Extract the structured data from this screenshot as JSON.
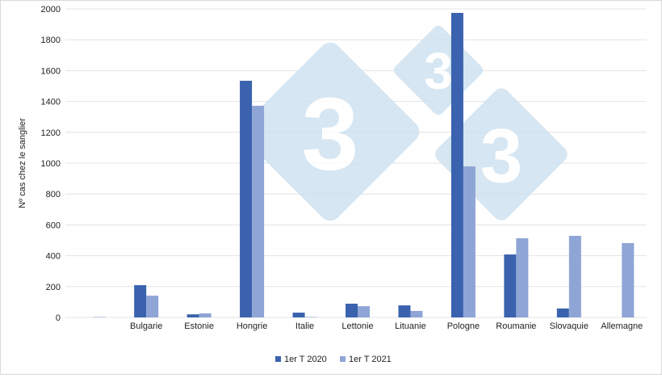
{
  "watermark": {
    "text": "3",
    "color": "#cfe2f0"
  },
  "chart_data": {
    "type": "bar",
    "title": "",
    "xlabel": "",
    "ylabel": "Nº cas chez le sanglier",
    "ylim": [
      0,
      2000
    ],
    "yticks": [
      0,
      200,
      400,
      600,
      800,
      1000,
      1200,
      1400,
      1600,
      1800,
      2000
    ],
    "grid": true,
    "legend_position": "bottom",
    "categories": [
      "",
      "Bulgarie",
      "Estonie",
      "Hongrie",
      "Italie",
      "Lettonie",
      "Lituanie",
      "Pologne",
      "Roumanie",
      "Slovaquie",
      "Allemagne"
    ],
    "series": [
      {
        "name": "1er T 2020",
        "color": "#3a62ae",
        "values": [
          0,
          209,
          20,
          1534,
          31,
          89,
          78,
          1974,
          408,
          58,
          0
        ]
      },
      {
        "name": "1er T 2021",
        "color": "#8fa5d6",
        "values": [
          3,
          141,
          26,
          1372,
          3,
          73,
          42,
          979,
          513,
          529,
          482
        ]
      }
    ]
  }
}
